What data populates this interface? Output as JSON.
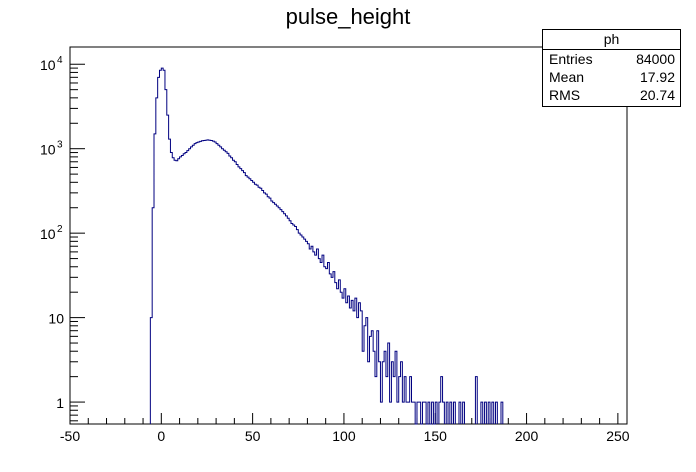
{
  "chart_data": {
    "type": "histogram",
    "title": "pulse_height",
    "xlabel": "",
    "ylabel": "",
    "xlim": [
      -50,
      255
    ],
    "ylim": [
      0.55,
      16000
    ],
    "y_scale": "log",
    "x_ticks": [
      "-50",
      "0",
      "50",
      "100",
      "150",
      "200",
      "250"
    ],
    "y_ticks": [
      {
        "value": 1,
        "label": "1"
      },
      {
        "value": 10,
        "label": "10"
      },
      {
        "value": 100,
        "label": "10",
        "exp": "2"
      },
      {
        "value": 1000,
        "label": "10",
        "exp": "3"
      },
      {
        "value": 10000,
        "label": "10",
        "exp": "4"
      }
    ],
    "bin_width": 1,
    "line_color": "#000080",
    "series": [
      {
        "bins": [
          [
            -6,
            10
          ],
          [
            -5,
            200
          ],
          [
            -4,
            1500
          ],
          [
            -3,
            4000
          ],
          [
            -2,
            7000
          ],
          [
            -1,
            8500
          ],
          [
            0,
            9000
          ],
          [
            1,
            8500
          ],
          [
            2,
            5000
          ],
          [
            3,
            2500
          ],
          [
            4,
            1300
          ],
          [
            5,
            900
          ],
          [
            6,
            780
          ],
          [
            7,
            730
          ],
          [
            8,
            720
          ],
          [
            9,
            760
          ],
          [
            10,
            800
          ],
          [
            11,
            830
          ],
          [
            12,
            870
          ],
          [
            13,
            900
          ],
          [
            14,
            950
          ],
          [
            15,
            1000
          ],
          [
            16,
            1050
          ],
          [
            17,
            1100
          ],
          [
            18,
            1150
          ],
          [
            19,
            1180
          ],
          [
            20,
            1200
          ],
          [
            21,
            1220
          ],
          [
            22,
            1240
          ],
          [
            23,
            1250
          ],
          [
            24,
            1260
          ],
          [
            25,
            1270
          ],
          [
            26,
            1260
          ],
          [
            27,
            1250
          ],
          [
            28,
            1230
          ],
          [
            29,
            1200
          ],
          [
            30,
            1150
          ],
          [
            31,
            1100
          ],
          [
            32,
            1050
          ],
          [
            33,
            1000
          ],
          [
            34,
            960
          ],
          [
            35,
            920
          ],
          [
            36,
            880
          ],
          [
            37,
            820
          ],
          [
            38,
            780
          ],
          [
            39,
            730
          ],
          [
            40,
            700
          ],
          [
            41,
            650
          ],
          [
            42,
            610
          ],
          [
            43,
            580
          ],
          [
            44,
            550
          ],
          [
            45,
            520
          ],
          [
            46,
            480
          ],
          [
            47,
            460
          ],
          [
            48,
            440
          ],
          [
            49,
            420
          ],
          [
            50,
            400
          ],
          [
            51,
            380
          ],
          [
            52,
            370
          ],
          [
            53,
            350
          ],
          [
            54,
            340
          ],
          [
            55,
            320
          ],
          [
            56,
            300
          ],
          [
            57,
            290
          ],
          [
            58,
            270
          ],
          [
            59,
            260
          ],
          [
            60,
            240
          ],
          [
            61,
            230
          ],
          [
            62,
            220
          ],
          [
            63,
            210
          ],
          [
            64,
            200
          ],
          [
            65,
            190
          ],
          [
            66,
            180
          ],
          [
            67,
            170
          ],
          [
            68,
            160
          ],
          [
            69,
            150
          ],
          [
            70,
            140
          ],
          [
            71,
            130
          ],
          [
            72,
            125
          ],
          [
            73,
            120
          ],
          [
            74,
            110
          ],
          [
            75,
            100
          ],
          [
            76,
            95
          ],
          [
            77,
            90
          ],
          [
            78,
            85
          ],
          [
            79,
            80
          ],
          [
            80,
            75
          ],
          [
            81,
            65
          ],
          [
            82,
            70
          ],
          [
            83,
            60
          ],
          [
            84,
            55
          ],
          [
            85,
            65
          ],
          [
            86,
            50
          ],
          [
            87,
            45
          ],
          [
            88,
            55
          ],
          [
            89,
            40
          ],
          [
            90,
            38
          ],
          [
            91,
            45
          ],
          [
            92,
            33
          ],
          [
            93,
            30
          ],
          [
            94,
            35
          ],
          [
            95,
            26
          ],
          [
            96,
            22
          ],
          [
            97,
            28
          ],
          [
            98,
            20
          ],
          [
            99,
            17
          ],
          [
            100,
            22
          ],
          [
            101,
            15
          ],
          [
            102,
            18
          ],
          [
            103,
            13
          ],
          [
            104,
            16
          ],
          [
            105,
            12
          ],
          [
            106,
            17
          ],
          [
            107,
            10
          ],
          [
            108,
            15
          ],
          [
            109,
            12
          ],
          [
            110,
            4
          ],
          [
            111,
            8
          ],
          [
            112,
            10
          ],
          [
            113,
            3
          ],
          [
            114,
            6
          ],
          [
            115,
            7
          ],
          [
            116,
            4
          ],
          [
            117,
            2
          ],
          [
            118,
            7
          ],
          [
            119,
            3
          ],
          [
            120,
            1
          ],
          [
            121,
            3
          ],
          [
            122,
            4
          ],
          [
            123,
            2
          ],
          [
            124,
            5
          ],
          [
            125,
            1
          ],
          [
            126,
            3
          ],
          [
            127,
            2
          ],
          [
            128,
            4
          ],
          [
            129,
            1
          ],
          [
            130,
            2
          ],
          [
            131,
            3
          ],
          [
            132,
            1
          ],
          [
            133,
            2
          ],
          [
            134,
            1
          ],
          [
            135,
            1
          ],
          [
            136,
            2
          ],
          [
            137,
            1
          ],
          [
            138,
            1
          ],
          [
            139,
            0
          ],
          [
            140,
            1
          ],
          [
            141,
            1
          ],
          [
            142,
            0
          ],
          [
            143,
            1
          ],
          [
            144,
            1
          ],
          [
            145,
            0
          ],
          [
            146,
            1
          ],
          [
            147,
            0
          ],
          [
            148,
            1
          ],
          [
            149,
            0
          ],
          [
            150,
            1
          ],
          [
            152,
            1
          ],
          [
            153,
            2
          ],
          [
            154,
            1
          ],
          [
            156,
            1
          ],
          [
            158,
            1
          ],
          [
            160,
            1
          ],
          [
            163,
            1
          ],
          [
            165,
            1
          ],
          [
            172,
            2
          ],
          [
            175,
            1
          ],
          [
            177,
            1
          ],
          [
            179,
            1
          ],
          [
            181,
            1
          ],
          [
            183,
            1
          ],
          [
            186,
            1
          ]
        ]
      }
    ]
  },
  "stats_box": {
    "title": "ph",
    "rows": [
      {
        "label": "Entries",
        "value": "84000"
      },
      {
        "label": "Mean",
        "value": "17.92"
      },
      {
        "label": "RMS",
        "value": "20.74"
      }
    ]
  }
}
